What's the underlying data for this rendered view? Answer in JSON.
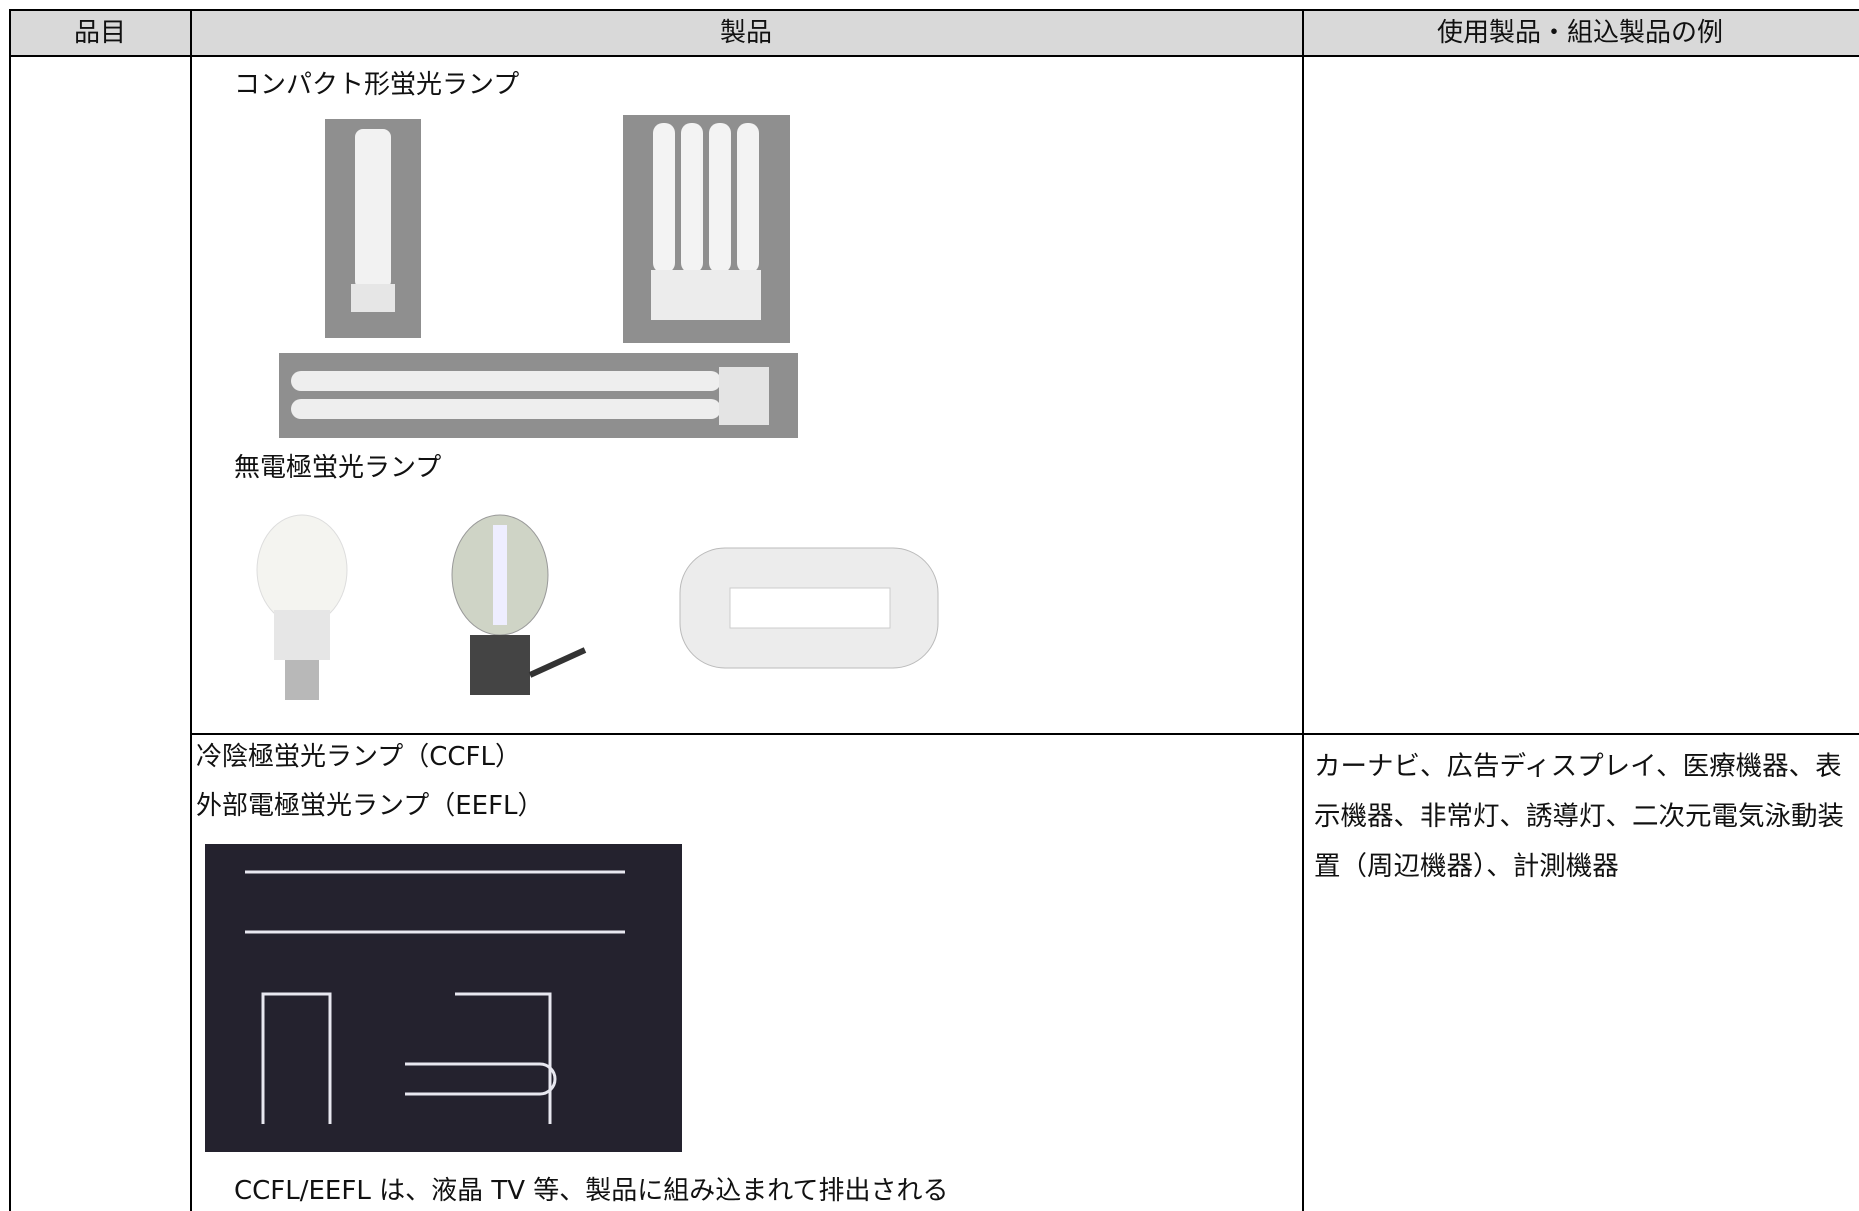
{
  "table": {
    "header": [
      "品目",
      "製品",
      "使用製品・組込製品の例"
    ],
    "rows": [
      {
        "products": [
          "コンパクト形蛍光ランプ",
          "無電極蛍光ランプ"
        ]
      },
      {
        "products": [
          "冷陰極蛍光ランプ（CCFL）",
          "外部電極蛍光ランプ（EEFL）"
        ],
        "note": "CCFL/EEFL は、液晶 TV 等、製品に組み込まれて排出される",
        "examples": "カーナビ、広告ディスプレイ、医療機器、表示機器、非常灯、誘導灯、二次元電気泳動装置（周辺機器）、計測機器"
      }
    ]
  }
}
